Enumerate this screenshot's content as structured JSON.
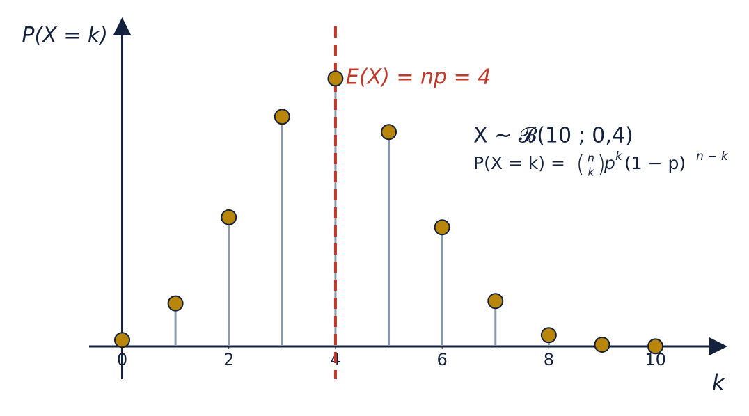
{
  "chart_data": {
    "type": "stem",
    "y_label": "P(X = k)",
    "x_label": "k",
    "x": [
      0,
      1,
      2,
      3,
      4,
      5,
      6,
      7,
      8,
      9,
      10
    ],
    "values": [
      0.006,
      0.0403,
      0.1209,
      0.215,
      0.2508,
      0.2007,
      0.1115,
      0.0425,
      0.0106,
      0.0016,
      0.0001
    ],
    "xlim": [
      -0.62,
      11.35
    ],
    "ylim": [
      -0.0306,
      0.308
    ],
    "xticks": [
      0,
      2,
      4,
      6,
      8,
      10
    ],
    "marker_color": "#b8860b",
    "stem_color": "#8a9aaa",
    "axis_color": "#14213d",
    "mean_line": {
      "x": 4,
      "label": "E(X) = np = 4",
      "color": "#c0392b"
    },
    "distribution": "X ~ 𝓑(10 ; 0,4)",
    "formula": {
      "lhs": "P(X = k) = ",
      "binom_top": "n",
      "binom_bottom": "k",
      "base": "p",
      "base_exp": "k",
      "factor": "(1 − p)",
      "factor_exp": "n − k"
    }
  }
}
